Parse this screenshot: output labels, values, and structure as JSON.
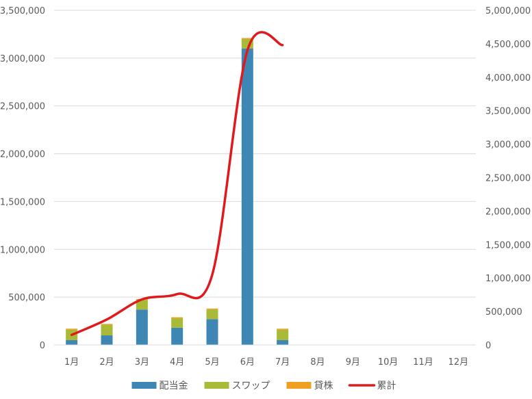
{
  "chart_data": {
    "type": "bar",
    "categories": [
      "1月",
      "2月",
      "3月",
      "4月",
      "5月",
      "6月",
      "7月",
      "8月",
      "9月",
      "10月",
      "11月",
      "12月"
    ],
    "stacked": true,
    "series": [
      {
        "name": "配当金",
        "type": "bar",
        "axis": "left",
        "color": "#3E86B4",
        "values": [
          50000,
          100000,
          370000,
          180000,
          270000,
          3100000,
          50000,
          null,
          null,
          null,
          null,
          null
        ]
      },
      {
        "name": "スワップ",
        "type": "bar",
        "axis": "left",
        "color": "#A9BA36",
        "values": [
          110000,
          110000,
          100000,
          100000,
          100000,
          100000,
          110000,
          null,
          null,
          null,
          null,
          null
        ]
      },
      {
        "name": "貸株",
        "type": "bar",
        "axis": "left",
        "color": "#F0A020",
        "values": [
          10000,
          10000,
          10000,
          10000,
          10000,
          10000,
          10000,
          null,
          null,
          null,
          null,
          null
        ]
      },
      {
        "name": "累計",
        "type": "line",
        "axis": "right",
        "color": "#E0191C",
        "values": [
          150000,
          380000,
          680000,
          760000,
          1050000,
          4400000,
          4480000,
          null,
          null,
          null,
          null,
          null
        ]
      }
    ],
    "y_left": {
      "min": 0,
      "max": 3500000,
      "step": 500000,
      "ticks": [
        "0",
        "500,000",
        "1,000,000",
        "1,500,000",
        "2,000,000",
        "2,500,000",
        "3,000,000",
        "3,500,000"
      ]
    },
    "y_right": {
      "min": 0,
      "max": 5000000,
      "step": 500000,
      "ticks": [
        "0",
        "500,000",
        "1,000,000",
        "1,500,000",
        "2,000,000",
        "2,500,000",
        "3,000,000",
        "3,500,000",
        "4,000,000",
        "4,500,000",
        "5,000,000"
      ]
    },
    "grid": true,
    "legend_position": "bottom"
  }
}
